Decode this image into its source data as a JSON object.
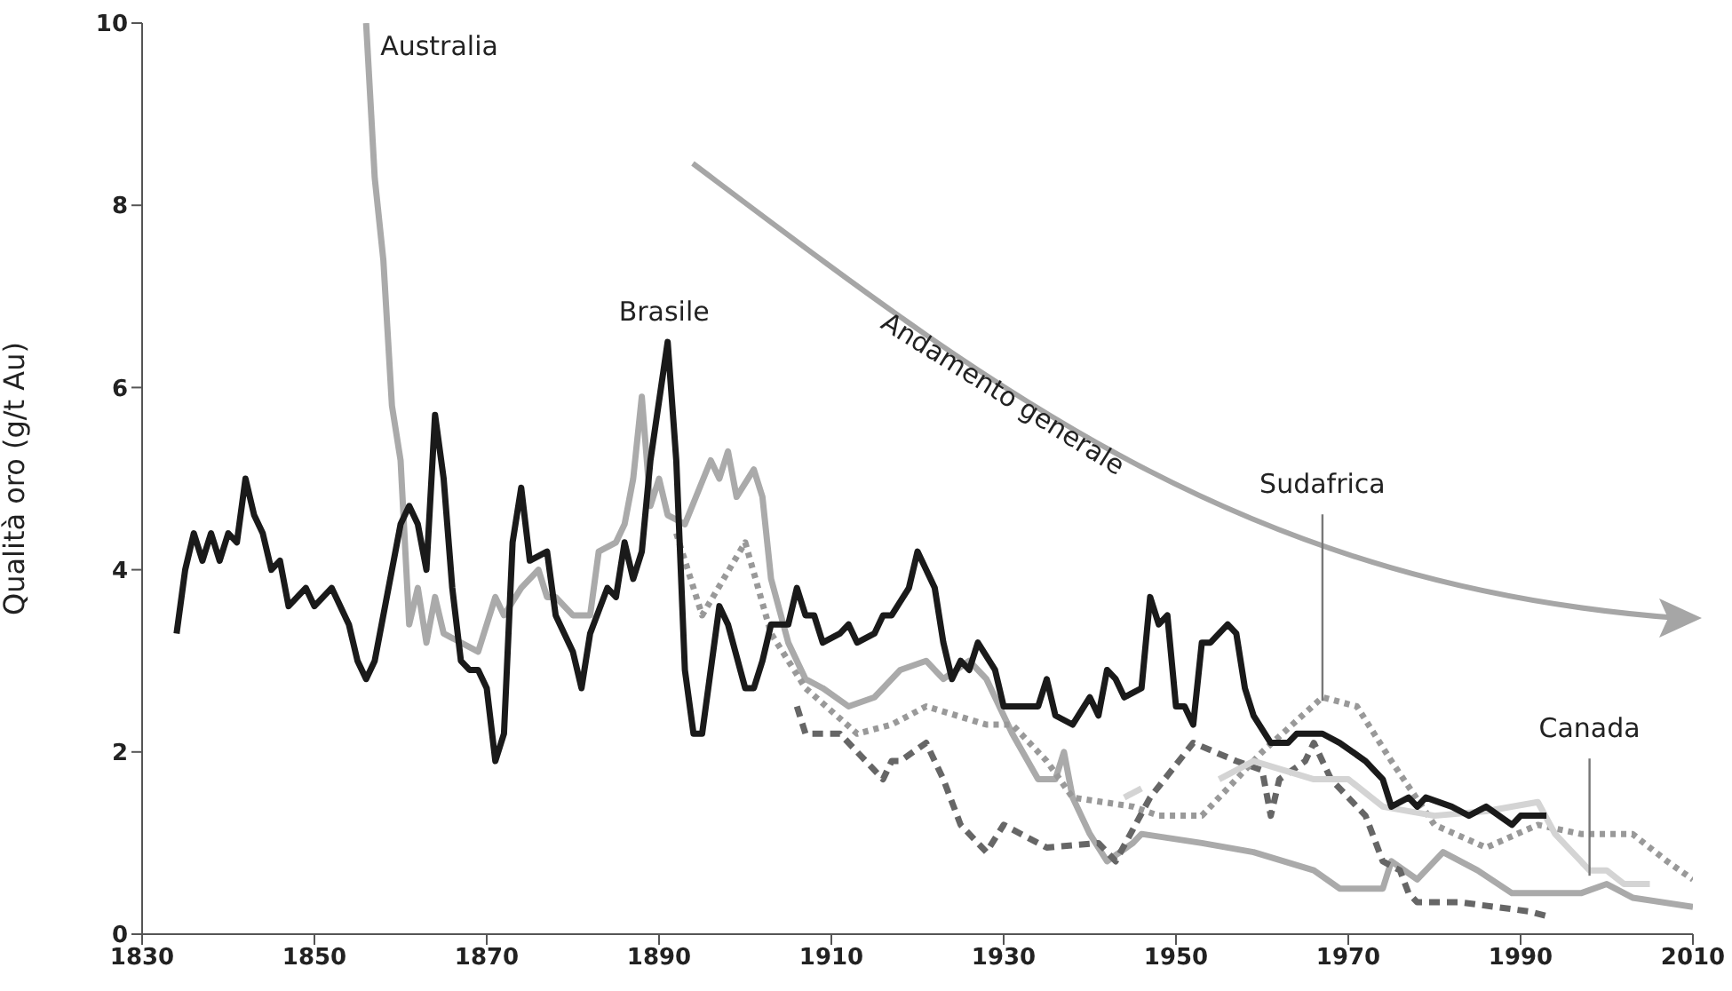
{
  "chart_data": {
    "type": "line",
    "ylabel": "Qualità oro (g/t Au)",
    "annotations": [
      "Andamento generale"
    ],
    "xlim": [
      1830,
      2010
    ],
    "xticks": [
      1830,
      1850,
      1870,
      1890,
      1910,
      1930,
      1950,
      1970,
      1990,
      2010
    ],
    "ylim": [
      0,
      10
    ],
    "yticks": [
      0,
      2,
      4,
      6,
      8,
      10
    ],
    "series": [
      {
        "name": "Australia",
        "color": "#aaaaaa",
        "line_style": "solid",
        "x": [
          1856,
          1857,
          1858,
          1859,
          1860,
          1861,
          1862,
          1863,
          1864,
          1865,
          1869,
          1871,
          1872,
          1874,
          1876,
          1877,
          1878,
          1880,
          1882,
          1883,
          1885,
          1886,
          1887,
          1888,
          1889,
          1890,
          1891,
          1893,
          1896,
          1897,
          1898,
          1899,
          1901,
          1902,
          1903,
          1905,
          1907,
          1909,
          1912,
          1915,
          1918,
          1921,
          1923,
          1926,
          1928,
          1931,
          1934,
          1936,
          1937,
          1938,
          1940,
          1942,
          1945,
          1946,
          1953,
          1959,
          1966,
          1969,
          1974,
          1975,
          1978,
          1981,
          1985,
          1989,
          1997,
          2000,
          2003,
          2010
        ],
        "values": [
          10,
          8.3,
          7.4,
          5.8,
          5.2,
          3.4,
          3.8,
          3.2,
          3.7,
          3.3,
          3.1,
          3.7,
          3.5,
          3.8,
          4.0,
          3.7,
          3.7,
          3.5,
          3.5,
          4.2,
          4.3,
          4.5,
          5.0,
          5.9,
          4.7,
          5.0,
          4.6,
          4.5,
          5.2,
          5.0,
          5.3,
          4.8,
          5.1,
          4.8,
          3.9,
          3.2,
          2.8,
          2.7,
          2.5,
          2.6,
          2.9,
          3.0,
          2.8,
          3.0,
          2.8,
          2.2,
          1.7,
          1.7,
          2.0,
          1.5,
          1.1,
          0.8,
          1.0,
          1.1,
          1.0,
          0.9,
          0.7,
          0.5,
          0.5,
          0.8,
          0.6,
          0.9,
          0.7,
          0.45,
          0.45,
          0.55,
          0.4,
          0.3
        ]
      },
      {
        "color": "#666666",
        "line_style": "dashed",
        "x": [
          1906,
          1907,
          1911,
          1914,
          1916,
          1917,
          1918,
          1921,
          1923,
          1925,
          1928,
          1930,
          1935,
          1941,
          1943,
          1947,
          1952,
          1957,
          1960,
          1961,
          1962,
          1965,
          1966,
          1968,
          1972,
          1974,
          1976,
          1977,
          1978,
          1983,
          1987,
          1991,
          1993
        ],
        "values": [
          2.5,
          2.2,
          2.2,
          1.9,
          1.7,
          1.9,
          1.9,
          2.1,
          1.7,
          1.2,
          0.9,
          1.2,
          0.95,
          1.0,
          0.8,
          1.5,
          2.1,
          1.9,
          1.8,
          1.3,
          1.7,
          1.9,
          2.1,
          1.7,
          1.3,
          0.8,
          0.7,
          0.45,
          0.35,
          0.35,
          0.3,
          0.25,
          0.2
        ]
      },
      {
        "name": "Sudafrica",
        "color": "#999999",
        "line_style": "dotted",
        "x": [
          1892,
          1895,
          1900,
          1903,
          1907,
          1913,
          1917,
          1921,
          1928,
          1931,
          1935,
          1938,
          1945,
          1948,
          1953,
          1960,
          1967,
          1971,
          1975,
          1980,
          1986,
          1992,
          1997,
          2003,
          2007,
          2010
        ],
        "values": [
          4.4,
          3.5,
          4.3,
          3.3,
          2.7,
          2.2,
          2.3,
          2.5,
          2.3,
          2.3,
          1.9,
          1.5,
          1.4,
          1.3,
          1.3,
          2.0,
          2.6,
          2.5,
          1.9,
          1.2,
          0.95,
          1.2,
          1.1,
          1.1,
          0.8,
          0.6
        ]
      },
      {
        "name": "Canada",
        "color": "#d4d4d4",
        "line_style": "solid",
        "x": [
          1944,
          1946,
          1947,
          1955,
          1959,
          1966,
          1970,
          1974,
          1980,
          1986,
          1992,
          1994,
          1998,
          2000,
          2002,
          2005
        ],
        "values": [
          1.5,
          1.6,
          null,
          1.7,
          1.9,
          1.7,
          1.7,
          1.4,
          1.3,
          1.35,
          1.45,
          1.1,
          0.7,
          0.7,
          0.55,
          0.55
        ]
      },
      {
        "name": "Brasile",
        "color": "#1a1a1a",
        "line_style": "solid",
        "x": [
          1834,
          1835,
          1836,
          1837,
          1838,
          1839,
          1840,
          1841,
          1842,
          1843,
          1844,
          1845,
          1846,
          1847,
          1849,
          1850,
          1852,
          1854,
          1855,
          1856,
          1857,
          1860,
          1861,
          1862,
          1863,
          1864,
          1865,
          1866,
          1867,
          1868,
          1869,
          1870,
          1871,
          1872,
          1873,
          1874,
          1875,
          1877,
          1878,
          1880,
          1881,
          1882,
          1884,
          1885,
          1886,
          1887,
          1888,
          1889,
          1891,
          1892,
          1893,
          1894,
          1895,
          1897,
          1898,
          1900,
          1901,
          1902,
          1903,
          1905,
          1906,
          1907,
          1908,
          1909,
          1911,
          1912,
          1913,
          1915,
          1916,
          1917,
          1919,
          1920,
          1921,
          1922,
          1923,
          1924,
          1925,
          1926,
          1927,
          1929,
          1930,
          1934,
          1935,
          1936,
          1938,
          1940,
          1941,
          1942,
          1943,
          1944,
          1946,
          1947,
          1948,
          1949,
          1950,
          1951,
          1952,
          1953,
          1954,
          1956,
          1957,
          1958,
          1959,
          1961,
          1963,
          1964,
          1967,
          1969,
          1972,
          1974,
          1975,
          1977,
          1978,
          1979,
          1982,
          1984,
          1986,
          1989,
          1990,
          1993
        ],
        "values": [
          3.3,
          4.0,
          4.4,
          4.1,
          4.4,
          4.1,
          4.4,
          4.3,
          5.0,
          4.6,
          4.4,
          4.0,
          4.1,
          3.6,
          3.8,
          3.6,
          3.8,
          3.4,
          3.0,
          2.8,
          3.0,
          4.5,
          4.7,
          4.5,
          4.0,
          5.7,
          5.0,
          3.8,
          3.0,
          2.9,
          2.9,
          2.7,
          1.9,
          2.2,
          4.3,
          4.9,
          4.1,
          4.2,
          3.5,
          3.1,
          2.7,
          3.3,
          3.8,
          3.7,
          4.3,
          3.9,
          4.2,
          5.2,
          6.5,
          5.2,
          2.9,
          2.2,
          2.2,
          3.6,
          3.4,
          2.7,
          2.7,
          3.0,
          3.4,
          3.4,
          3.8,
          3.5,
          3.5,
          3.2,
          3.3,
          3.4,
          3.2,
          3.3,
          3.5,
          3.5,
          3.8,
          4.2,
          4.0,
          3.8,
          3.2,
          2.8,
          3.0,
          2.9,
          3.2,
          2.9,
          2.5,
          2.5,
          2.8,
          2.4,
          2.3,
          2.6,
          2.4,
          2.9,
          2.8,
          2.6,
          2.7,
          3.7,
          3.4,
          3.5,
          2.5,
          2.5,
          2.3,
          3.2,
          3.2,
          3.4,
          3.3,
          2.7,
          2.4,
          2.1,
          2.1,
          2.2,
          2.2,
          2.1,
          1.9,
          1.7,
          1.4,
          1.5,
          1.4,
          1.5,
          1.4,
          1.3,
          1.4,
          1.2,
          1.3,
          1.3
        ]
      }
    ]
  }
}
